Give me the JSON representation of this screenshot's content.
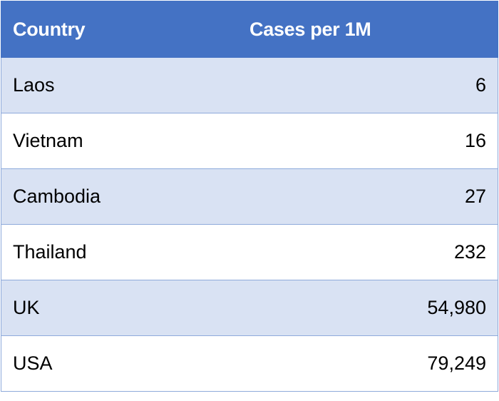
{
  "table": {
    "headers": {
      "country": "Country",
      "cases": "Cases per 1M"
    },
    "rows": [
      {
        "country": "Laos",
        "cases": "6"
      },
      {
        "country": "Vietnam",
        "cases": "16"
      },
      {
        "country": "Cambodia",
        "cases": "27"
      },
      {
        "country": "Thailand",
        "cases": "232"
      },
      {
        "country": "UK",
        "cases": "54,980"
      },
      {
        "country": "USA",
        "cases": "79,249"
      }
    ],
    "colors": {
      "header_bg": "#4472c4",
      "header_text": "#ffffff",
      "band_bg": "#d9e2f3",
      "plain_bg": "#ffffff",
      "border": "#8eaadb"
    }
  }
}
